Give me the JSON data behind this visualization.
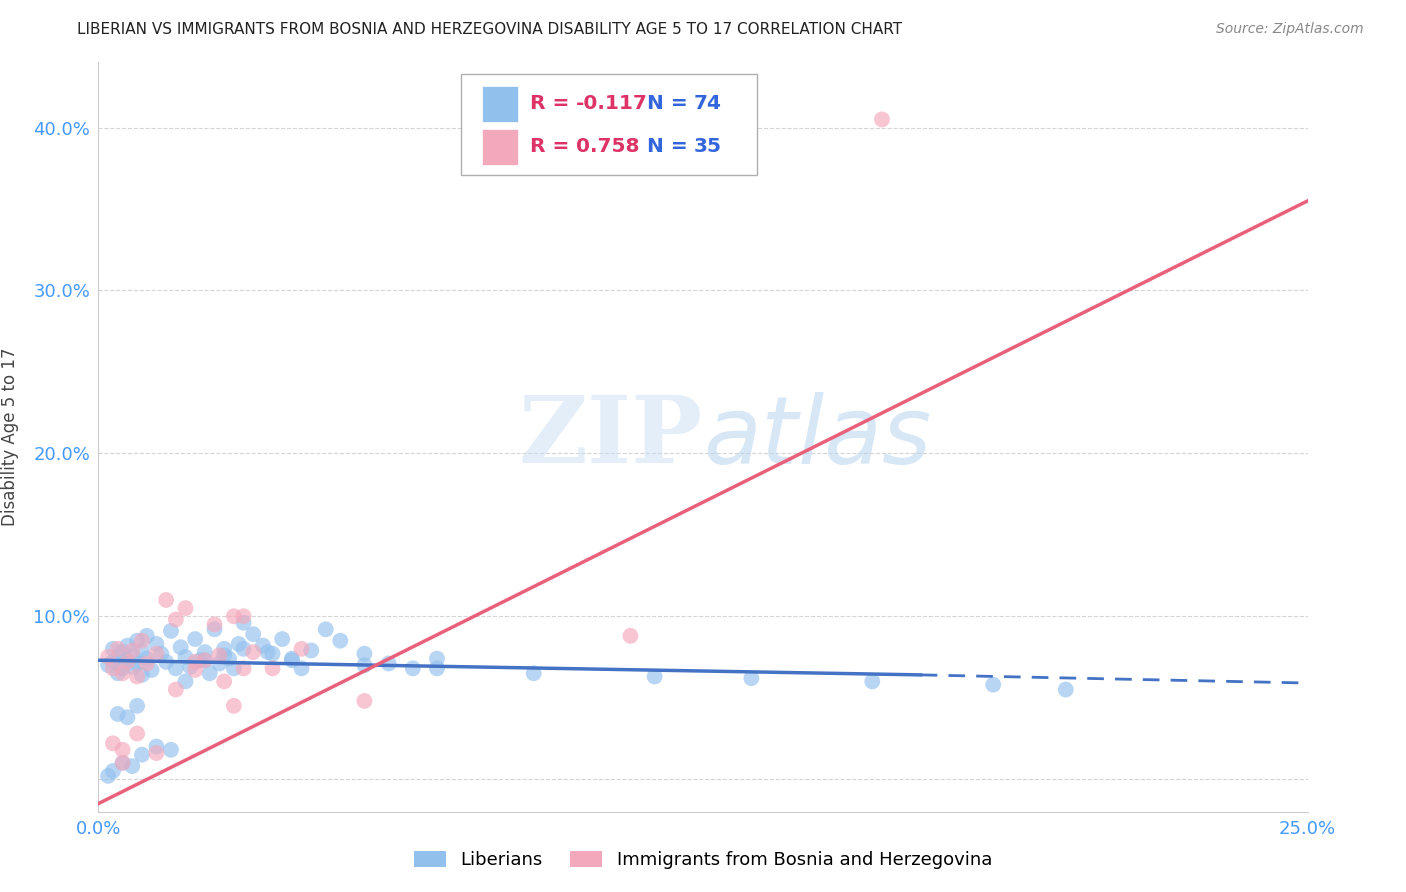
{
  "title": "LIBERIAN VS IMMIGRANTS FROM BOSNIA AND HERZEGOVINA DISABILITY AGE 5 TO 17 CORRELATION CHART",
  "source": "Source: ZipAtlas.com",
  "ylabel": "Disability Age 5 to 17",
  "xlim": [
    0.0,
    0.25
  ],
  "ylim": [
    -0.02,
    0.44
  ],
  "xticks": [
    0.0,
    0.05,
    0.1,
    0.15,
    0.2,
    0.25
  ],
  "yticks": [
    0.0,
    0.1,
    0.2,
    0.3,
    0.4
  ],
  "xticklabels": [
    "0.0%",
    "",
    "",
    "",
    "",
    "25.0%"
  ],
  "yticklabels": [
    "",
    "10.0%",
    "20.0%",
    "30.0%",
    "40.0%"
  ],
  "blue_R": -0.117,
  "blue_N": 74,
  "pink_R": 0.758,
  "pink_N": 35,
  "blue_color": "#92c0ed",
  "pink_color": "#f4a8bb",
  "blue_line_color": "#4472c4",
  "pink_line_color": "#e8607a",
  "watermark_zip": "ZIP",
  "watermark_atlas": "atlas",
  "blue_line_x0": 0.0,
  "blue_line_y0": 0.073,
  "blue_line_x1": 0.17,
  "blue_line_y1": 0.064,
  "blue_line_x2": 0.25,
  "blue_line_y2": 0.059,
  "pink_line_x0": 0.0,
  "pink_line_y0": -0.015,
  "pink_line_x1": 0.25,
  "pink_line_y1": 0.355,
  "blue_points_x": [
    0.002,
    0.003,
    0.003,
    0.004,
    0.004,
    0.005,
    0.005,
    0.006,
    0.006,
    0.007,
    0.007,
    0.008,
    0.008,
    0.009,
    0.009,
    0.01,
    0.01,
    0.011,
    0.012,
    0.013,
    0.014,
    0.015,
    0.016,
    0.017,
    0.018,
    0.019,
    0.02,
    0.021,
    0.022,
    0.023,
    0.024,
    0.025,
    0.026,
    0.027,
    0.028,
    0.029,
    0.03,
    0.032,
    0.034,
    0.036,
    0.038,
    0.04,
    0.042,
    0.044,
    0.047,
    0.05,
    0.055,
    0.06,
    0.065,
    0.07,
    0.003,
    0.005,
    0.007,
    0.009,
    0.012,
    0.015,
    0.018,
    0.022,
    0.026,
    0.03,
    0.035,
    0.04,
    0.055,
    0.07,
    0.09,
    0.115,
    0.135,
    0.16,
    0.185,
    0.2,
    0.004,
    0.006,
    0.008,
    0.002
  ],
  "blue_points_y": [
    0.07,
    0.08,
    0.072,
    0.065,
    0.075,
    0.068,
    0.078,
    0.073,
    0.082,
    0.076,
    0.069,
    0.085,
    0.071,
    0.079,
    0.064,
    0.088,
    0.074,
    0.067,
    0.083,
    0.077,
    0.072,
    0.091,
    0.068,
    0.081,
    0.075,
    0.069,
    0.086,
    0.073,
    0.078,
    0.065,
    0.092,
    0.071,
    0.08,
    0.074,
    0.068,
    0.083,
    0.096,
    0.089,
    0.082,
    0.077,
    0.086,
    0.073,
    0.068,
    0.079,
    0.092,
    0.085,
    0.077,
    0.071,
    0.068,
    0.074,
    0.005,
    0.01,
    0.008,
    0.015,
    0.02,
    0.018,
    0.06,
    0.073,
    0.076,
    0.08,
    0.078,
    0.074,
    0.07,
    0.068,
    0.065,
    0.063,
    0.062,
    0.06,
    0.058,
    0.055,
    0.04,
    0.038,
    0.045,
    0.002
  ],
  "pink_points_x": [
    0.002,
    0.003,
    0.004,
    0.005,
    0.006,
    0.007,
    0.008,
    0.009,
    0.01,
    0.012,
    0.014,
    0.016,
    0.018,
    0.02,
    0.022,
    0.024,
    0.026,
    0.028,
    0.03,
    0.032,
    0.003,
    0.005,
    0.008,
    0.012,
    0.016,
    0.02,
    0.025,
    0.03,
    0.036,
    0.042,
    0.11,
    0.162,
    0.005,
    0.028,
    0.055
  ],
  "pink_points_y": [
    0.075,
    0.068,
    0.08,
    0.065,
    0.072,
    0.079,
    0.063,
    0.085,
    0.071,
    0.077,
    0.11,
    0.098,
    0.105,
    0.067,
    0.073,
    0.095,
    0.06,
    0.1,
    0.068,
    0.078,
    0.022,
    0.018,
    0.028,
    0.016,
    0.055,
    0.072,
    0.076,
    0.1,
    0.068,
    0.08,
    0.088,
    0.405,
    0.01,
    0.045,
    0.048
  ]
}
